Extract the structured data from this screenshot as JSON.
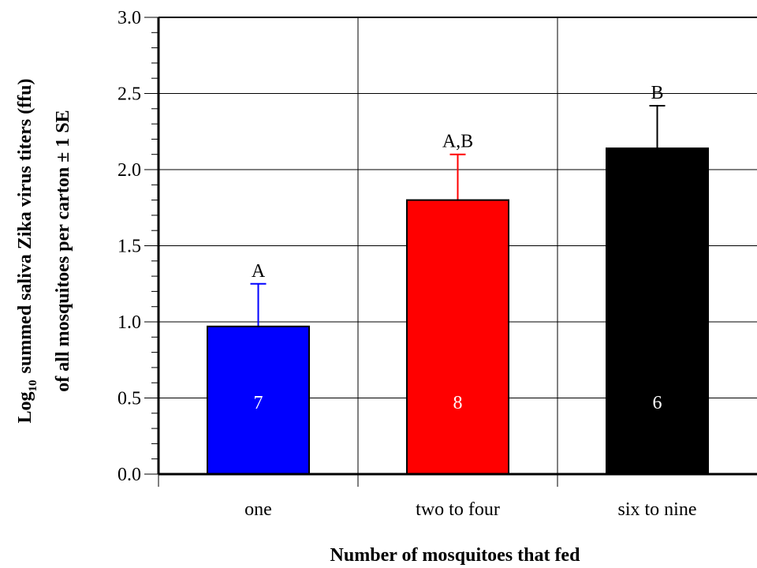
{
  "chart_data": {
    "type": "bar",
    "categories": [
      "one",
      "two to four",
      "six to nine"
    ],
    "values": [
      0.97,
      1.8,
      2.14
    ],
    "errors": [
      0.28,
      0.3,
      0.28
    ],
    "sample_sizes": [
      "7",
      "8",
      "6"
    ],
    "significance_letters": [
      "A",
      "A,B",
      "B"
    ],
    "colors": [
      "#0000ff",
      "#ff0000",
      "#000000"
    ],
    "error_bar_colors": [
      "#0000ff",
      "#ff0000",
      "#000000"
    ],
    "xlabel": "Number of mosquitoes that fed",
    "ylabel_line1_prefix": "Log",
    "ylabel_line1_subscript": "10",
    "ylabel_line1_rest": "summed saliva Zika virus titers (ffu)",
    "ylabel_line2": "of all mosquitoes per carton ± 1 SE",
    "ylim": [
      0,
      3
    ],
    "yticks": [
      "0.0",
      "0.5",
      "1.0",
      "1.5",
      "2.0",
      "2.5",
      "3.0"
    ],
    "grid": true
  }
}
